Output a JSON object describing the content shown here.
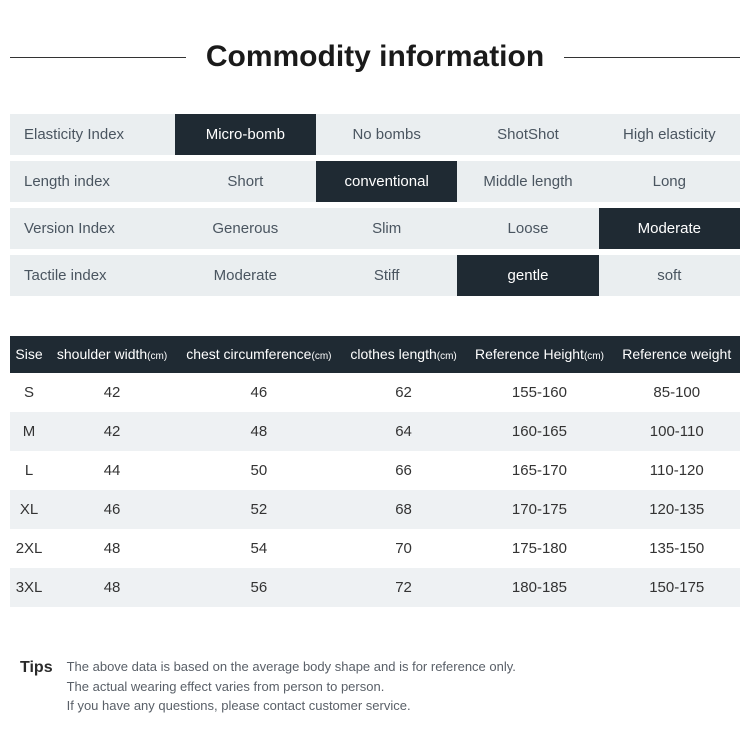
{
  "title": "Commodity information",
  "indexRows": [
    {
      "label": "Elasticity Index",
      "options": [
        "Micro-bomb",
        "No bombs",
        "ShotShot",
        "High elasticity"
      ],
      "selected": 0
    },
    {
      "label": "Length index",
      "options": [
        "Short",
        "conventional",
        "Middle length",
        "Long"
      ],
      "selected": 1
    },
    {
      "label": "Version Index",
      "options": [
        "Generous",
        "Slim",
        "Loose",
        "Moderate"
      ],
      "selected": 3
    },
    {
      "label": "Tactile index",
      "options": [
        "Moderate",
        "Stiff",
        "gentle",
        "soft"
      ],
      "selected": 2
    }
  ],
  "sizeTable": {
    "headers": [
      {
        "text": "Sise",
        "unit": ""
      },
      {
        "text": "shoulder width",
        "unit": "(cm)"
      },
      {
        "text": "chest circumference",
        "unit": "(cm)"
      },
      {
        "text": "clothes length",
        "unit": "(cm)"
      },
      {
        "text": "Reference Height",
        "unit": "(cm)"
      },
      {
        "text": "Reference weight",
        "unit": ""
      }
    ],
    "rows": [
      [
        "S",
        "42",
        "46",
        "62",
        "155-160",
        "85-100"
      ],
      [
        "M",
        "42",
        "48",
        "64",
        "160-165",
        "100-110"
      ],
      [
        "L",
        "44",
        "50",
        "66",
        "165-170",
        "110-120"
      ],
      [
        "XL",
        "46",
        "52",
        "68",
        "170-175",
        "120-135"
      ],
      [
        "2XL",
        "48",
        "54",
        "70",
        "175-180",
        "135-150"
      ],
      [
        "3XL",
        "48",
        "56",
        "72",
        "180-185",
        "150-175"
      ]
    ]
  },
  "tips": {
    "label": "Tips",
    "lines": [
      "The above data is based on the average body shape and is for reference only.",
      "The actual wearing effect varies from person to person.",
      "If you have any questions, please contact customer service."
    ]
  },
  "colors": {
    "dark": "#1f2a33",
    "light": "#eaeef0",
    "rowAlt": "#eef1f3",
    "text": "#333333",
    "muted": "#5a6068"
  }
}
